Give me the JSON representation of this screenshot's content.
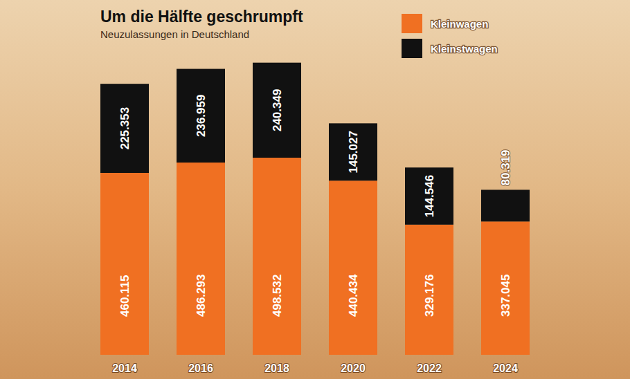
{
  "chart_data": {
    "type": "bar",
    "title": "Um die Hälfte geschrumpft",
    "subtitle": "Neuzulassungen in Deutschland",
    "categories": [
      "2014",
      "2016",
      "2018",
      "2020",
      "2022",
      "2024"
    ],
    "series": [
      {
        "name": "Kleinwagen",
        "color": "#f07022",
        "values": [
          460115,
          486293,
          498532,
          440434,
          329176,
          337045
        ],
        "value_labels": [
          "460.115",
          "486.293",
          "498.532",
          "440.434",
          "329.176",
          "337.045"
        ]
      },
      {
        "name": "Kleinstwagen",
        "color": "#111111",
        "values": [
          225353,
          236959,
          240349,
          145027,
          144546,
          80319
        ],
        "value_labels": [
          "225.353",
          "236.959",
          "240.349",
          "145.027",
          "144.546",
          "80.319"
        ]
      }
    ],
    "ylim": [
      0,
      740000
    ],
    "stacked": true,
    "data_labels": true,
    "tick_labels": "x",
    "legend": "top-right",
    "grid": false
  }
}
